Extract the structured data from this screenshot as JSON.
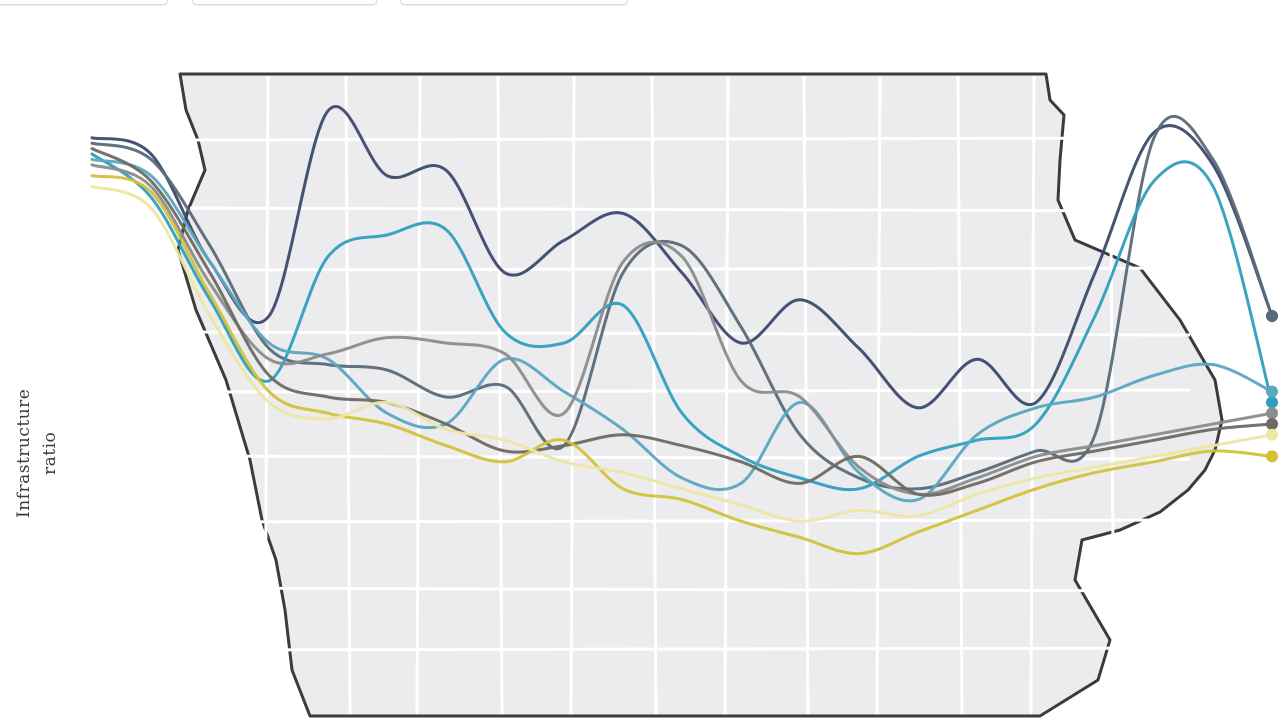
{
  "toolbar": {
    "buttons": [
      "",
      "",
      ""
    ]
  },
  "chart_data": {
    "type": "line",
    "title": "",
    "xlabel": "",
    "ylabel_line1": "Infrastructure",
    "ylabel_line2": "ratio",
    "x": [
      0,
      5,
      10,
      15,
      20,
      25,
      30,
      35,
      40,
      45,
      50,
      55,
      60,
      65,
      70,
      75,
      80,
      85,
      90,
      95,
      100
    ],
    "xlim": [
      0,
      100
    ],
    "ylim": [
      0,
      100
    ],
    "grid": true,
    "legend": "none",
    "background_map": true,
    "series": [
      {
        "color": "#3c4a6b",
        "values": [
          93,
          90,
          70,
          60,
          98,
          86,
          87,
          68,
          74,
          79,
          68,
          55,
          63,
          54,
          43,
          52,
          44,
          68,
          94,
          88,
          60
        ]
      },
      {
        "color": "#5a6a78",
        "values": [
          92,
          89,
          73,
          54,
          51,
          50,
          45,
          47,
          36,
          68,
          73,
          58,
          38,
          30,
          28,
          31,
          35,
          38,
          93,
          89,
          60
        ]
      },
      {
        "color": "#2f9fbf",
        "values": [
          90,
          82,
          63,
          48,
          71,
          75,
          76,
          57,
          55,
          62,
          42,
          34,
          30,
          28,
          34,
          37,
          40,
          60,
          85,
          84,
          44
        ]
      },
      {
        "color": "#5aa7c0",
        "values": [
          89,
          86,
          70,
          55,
          52,
          42,
          40,
          52,
          46,
          39,
          30,
          29,
          44,
          31,
          26,
          38,
          43,
          45,
          49,
          51,
          46
        ]
      },
      {
        "color": "#8c8c8c",
        "values": [
          88,
          84,
          66,
          52,
          53,
          56,
          55,
          53,
          42,
          70,
          71,
          48,
          45,
          32,
          27,
          30,
          34,
          36,
          38,
          40,
          42
        ]
      },
      {
        "color": "#6d6a62",
        "values": [
          91,
          85,
          68,
          49,
          45,
          44,
          40,
          35,
          36,
          38,
          36,
          33,
          29,
          34,
          27,
          29,
          33,
          35,
          37,
          39,
          40
        ]
      },
      {
        "color": "#d4c13a",
        "values": [
          86,
          83,
          64,
          46,
          42,
          40,
          36,
          33,
          37,
          28,
          26,
          22,
          19,
          16,
          20,
          24,
          28,
          31,
          33,
          35,
          34
        ]
      },
      {
        "color": "#ece7a3",
        "values": [
          84,
          80,
          60,
          44,
          41,
          44,
          39,
          37,
          33,
          31,
          28,
          25,
          22,
          24,
          23,
          27,
          30,
          32,
          34,
          36,
          38
        ]
      }
    ]
  }
}
